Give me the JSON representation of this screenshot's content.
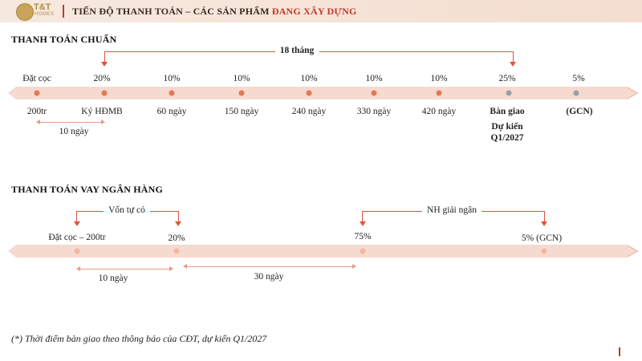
{
  "header": {
    "logo_text": "T&T",
    "logo_sub": "HOMES",
    "title_main": "TIẾN ĐỘ THANH TOÁN – CÁC SẢN PHẨM ",
    "title_highlight": "ĐANG XÂY DỰNG"
  },
  "standard": {
    "title": "THANH TOÁN CHUẨN",
    "bracket_label": "18 tháng",
    "span_label": "10 ngày",
    "top_labels": [
      "Đặt cọc",
      "20%",
      "10%",
      "10%",
      "10%",
      "10%",
      "10%",
      "25%",
      "5%"
    ],
    "bottom_labels": [
      "200tr",
      "Ký HĐMB",
      "60 ngày",
      "150 ngày",
      "240 ngày",
      "330 ngày",
      "420 ngày",
      "Bàn giao",
      "(GCN)"
    ],
    "handover_note_1": "Dự kiến",
    "handover_note_2": "Q1/2027"
  },
  "bank": {
    "title": "THANH TOÁN VAY NGÂN HÀNG",
    "bracket1_label": "Vốn tự có",
    "bracket2_label": "NH giải ngân",
    "labels": [
      "Đặt cọc – 200tr",
      "20%",
      "75%",
      "5% (GCN)"
    ],
    "span1_label": "10 ngày",
    "span2_label": "30 ngày"
  },
  "footnote": "(*) Thời điểm bàn giao theo thông báo của CĐT, dự kiến Q1/2027",
  "colors": {
    "band": "#f6d9cf",
    "accent": "#e0533f",
    "dot_orange": "#e07a52",
    "dot_gray": "#9aa0a6"
  }
}
